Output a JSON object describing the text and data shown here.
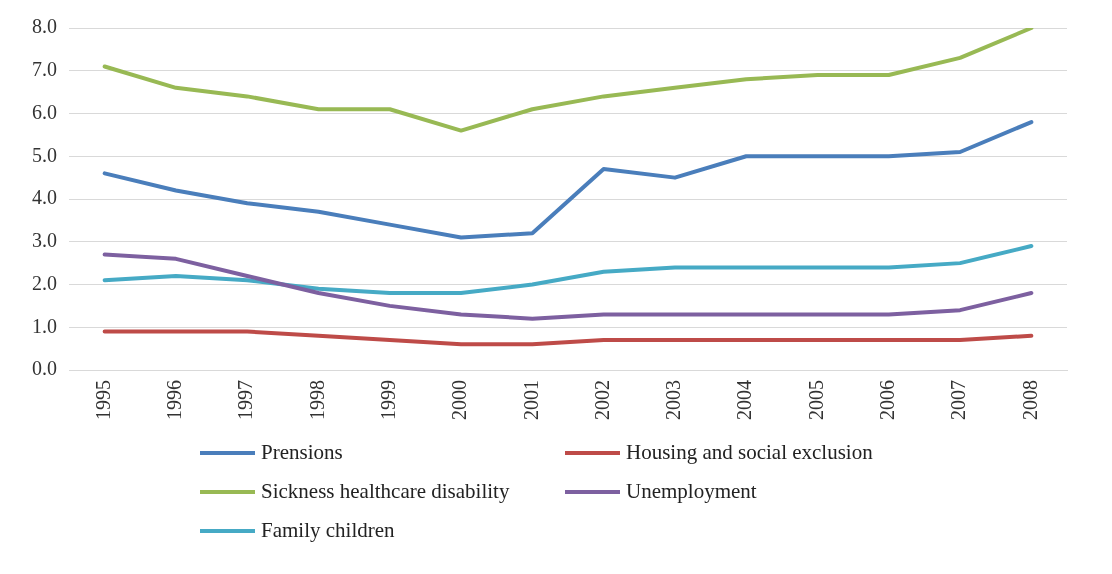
{
  "chart_data": {
    "type": "line",
    "categories": [
      "1995",
      "1996",
      "1997",
      "1998",
      "1999",
      "2000",
      "2001",
      "2002",
      "2003",
      "2004",
      "2005",
      "2006",
      "2007",
      "2008"
    ],
    "series": [
      {
        "name": "Prensions",
        "color": "#4a7ebb",
        "values": [
          4.6,
          4.2,
          3.9,
          3.7,
          3.4,
          3.1,
          3.2,
          4.7,
          4.5,
          5.0,
          5.0,
          5.0,
          5.1,
          5.8
        ]
      },
      {
        "name": "Housing and social exclusion",
        "color": "#be4b48",
        "values": [
          0.9,
          0.9,
          0.9,
          0.8,
          0.7,
          0.6,
          0.6,
          0.7,
          0.7,
          0.7,
          0.7,
          0.7,
          0.7,
          0.8
        ]
      },
      {
        "name": "Sickness healthcare disability",
        "color": "#98b954",
        "values": [
          7.1,
          6.6,
          6.4,
          6.1,
          6.1,
          5.6,
          6.1,
          6.4,
          6.6,
          6.8,
          6.9,
          6.9,
          7.3,
          8.0
        ]
      },
      {
        "name": "Unemployment",
        "color": "#7d60a0",
        "values": [
          2.7,
          2.6,
          2.2,
          1.8,
          1.5,
          1.3,
          1.2,
          1.3,
          1.3,
          1.3,
          1.3,
          1.3,
          1.4,
          1.8
        ]
      },
      {
        "name": "Family children",
        "color": "#46aac5",
        "values": [
          2.1,
          2.2,
          2.1,
          1.9,
          1.8,
          1.8,
          2.0,
          2.3,
          2.4,
          2.4,
          2.4,
          2.4,
          2.5,
          2.9
        ]
      }
    ],
    "ylim": [
      0,
      8
    ],
    "yticks": [
      {
        "value": 0,
        "label": "0.0"
      },
      {
        "value": 1,
        "label": "1.0"
      },
      {
        "value": 2,
        "label": "2.0"
      },
      {
        "value": 3,
        "label": "3.0"
      },
      {
        "value": 4,
        "label": "4.0"
      },
      {
        "value": 5,
        "label": "5.0"
      },
      {
        "value": 6,
        "label": "6.0"
      },
      {
        "value": 7,
        "label": "7.0"
      },
      {
        "value": 8,
        "label": "8.0"
      }
    ],
    "grid": "y",
    "legend": "bottom",
    "marker": "none",
    "line_style": "solid"
  }
}
